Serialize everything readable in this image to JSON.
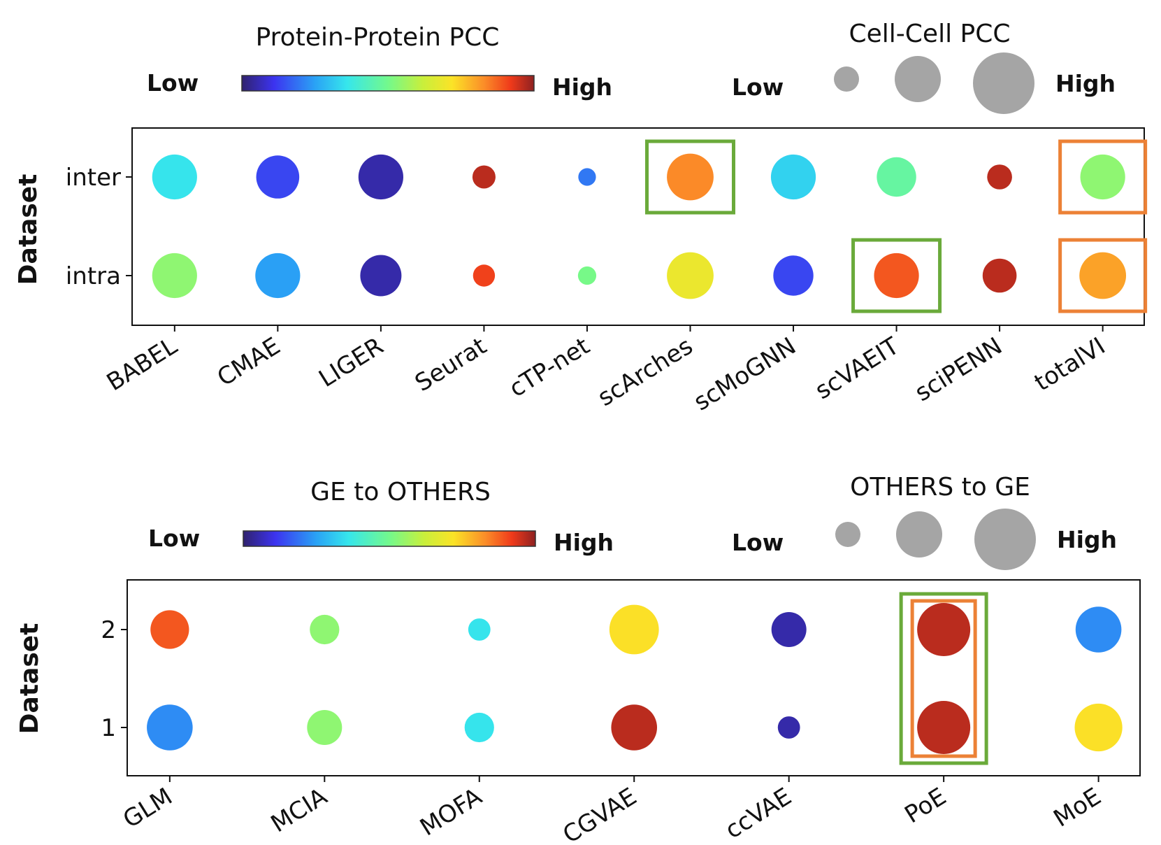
{
  "chart_data": [
    {
      "type": "scatter",
      "name": "protein-prediction",
      "color_legend": {
        "title": "Protein-Protein PCC",
        "low": "Low",
        "high": "High"
      },
      "size_legend": {
        "title": "Cell-Cell PCC",
        "low": "Low",
        "high": "High"
      },
      "ylabel": "Dataset",
      "rows": [
        "inter",
        "intra"
      ],
      "categories": [
        "BABEL",
        "CMAE",
        "LIGER",
        "Seurat",
        "cTP-net",
        "scArches",
        "scMoGNN",
        "scVAEIT",
        "sciPENN",
        "totalVI"
      ],
      "series": [
        {
          "name": "inter",
          "color_value": [
            0.33,
            0.13,
            0.05,
            0.95,
            0.18,
            0.78,
            0.3,
            0.42,
            0.95,
            0.48
          ],
          "size_value": [
            0.85,
            0.8,
            0.85,
            0.25,
            0.1,
            0.9,
            0.85,
            0.7,
            0.3,
            0.85
          ]
        },
        {
          "name": "intra",
          "color_value": [
            0.48,
            0.22,
            0.05,
            0.88,
            0.45,
            0.63,
            0.13,
            0.85,
            0.95,
            0.75
          ],
          "size_value": [
            0.85,
            0.85,
            0.75,
            0.22,
            0.12,
            0.9,
            0.72,
            0.85,
            0.55,
            0.9
          ]
        }
      ],
      "highlights": [
        {
          "category": "scArches",
          "row": "inter",
          "color": "#6aaa3a"
        },
        {
          "category": "totalVI",
          "row": "inter",
          "color": "#ec8136"
        },
        {
          "category": "scVAEIT",
          "row": "intra",
          "color": "#6aaa3a"
        },
        {
          "category": "totalVI",
          "row": "intra",
          "color": "#ec8136"
        }
      ]
    },
    {
      "type": "scatter",
      "name": "modality-translation",
      "color_legend": {
        "title": "GE to OTHERS",
        "low": "Low",
        "high": "High"
      },
      "size_legend": {
        "title": "OTHERS to GE",
        "low": "Low",
        "high": "High"
      },
      "ylabel": "Dataset",
      "rows": [
        "2",
        "1"
      ],
      "categories": [
        "GLM",
        "MCIA",
        "MOFA",
        "CGVAE",
        "ccVAE",
        "PoE",
        "MoE"
      ],
      "series": [
        {
          "name": "2",
          "color_value": [
            0.85,
            0.48,
            0.33,
            0.67,
            0.05,
            0.95,
            0.2
          ],
          "size_value": [
            0.6,
            0.35,
            0.15,
            0.9,
            0.5,
            1.0,
            0.8
          ]
        },
        {
          "name": "1",
          "color_value": [
            0.2,
            0.48,
            0.33,
            0.95,
            0.05,
            0.95,
            0.67
          ],
          "size_value": [
            0.8,
            0.5,
            0.35,
            0.8,
            0.15,
            1.0,
            0.85
          ]
        }
      ],
      "highlights": [
        {
          "category": "PoE",
          "rows": [
            "2",
            "1"
          ],
          "color": "#6aaa3a"
        },
        {
          "category": "PoE",
          "rows": [
            "2",
            "1"
          ],
          "color": "#ec8136"
        }
      ]
    }
  ],
  "palette": {
    "jet": [
      "#30226e",
      "#3c33f0",
      "#2aa2f5",
      "#36e6ec",
      "#73f98c",
      "#c9ef3b",
      "#fbe327",
      "#fb8c28",
      "#ef3a1a",
      "#8e2121"
    ],
    "size_legend_dot": "#a5a5a5",
    "highlight_green": "#6aaa3a",
    "highlight_orange": "#ec8136"
  }
}
